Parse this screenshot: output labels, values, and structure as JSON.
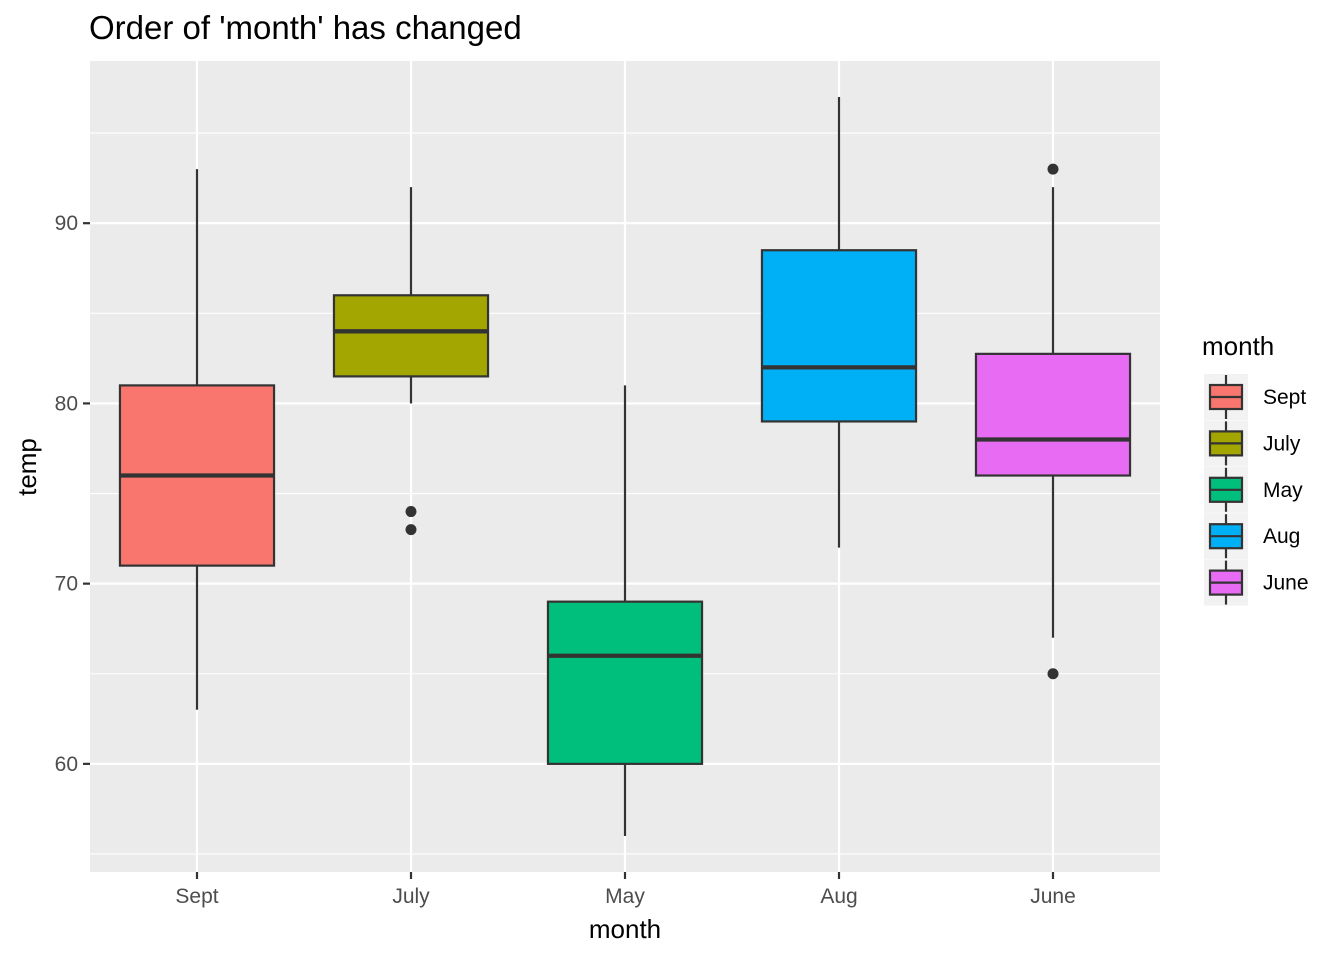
{
  "chart_data": {
    "type": "boxplot",
    "title": "Order of 'month' has changed",
    "xlabel": "month",
    "ylabel": "temp",
    "categories": [
      "Sept",
      "July",
      "May",
      "Aug",
      "June"
    ],
    "ylim": [
      54,
      99
    ],
    "yticks": [
      60,
      70,
      80,
      90
    ],
    "grid": true,
    "legend": {
      "title": "month",
      "placement": "right",
      "entries": [
        "Sept",
        "July",
        "May",
        "Aug",
        "June"
      ]
    },
    "boxes": [
      {
        "category": "Sept",
        "color": "#F8766D",
        "whisker_low": 63,
        "q1": 71,
        "median": 76,
        "q3": 81,
        "whisker_high": 93,
        "outliers": []
      },
      {
        "category": "July",
        "color": "#A3A500",
        "whisker_low": 80,
        "q1": 81.5,
        "median": 84,
        "q3": 86,
        "whisker_high": 92,
        "outliers": [
          73,
          74
        ]
      },
      {
        "category": "May",
        "color": "#00BF7D",
        "whisker_low": 56,
        "q1": 60,
        "median": 66,
        "q3": 69,
        "whisker_high": 81,
        "outliers": []
      },
      {
        "category": "Aug",
        "color": "#00B0F6",
        "whisker_low": 72,
        "q1": 79,
        "median": 82,
        "q3": 88.5,
        "whisker_high": 97,
        "outliers": []
      },
      {
        "category": "June",
        "color": "#E76BF3",
        "whisker_low": 67,
        "q1": 76,
        "median": 78,
        "q3": 82.75,
        "whisker_high": 92,
        "outliers": [
          65,
          93
        ]
      }
    ]
  }
}
